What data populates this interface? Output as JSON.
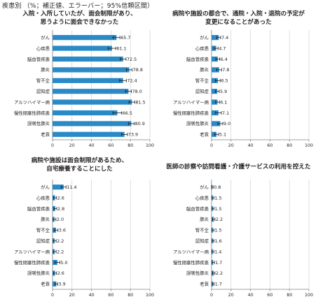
{
  "header": "疾患別 （%；補正値、エラーバー；95%信頼区間）",
  "colors": {
    "bar": "#2b8ac6",
    "axis": "#808080",
    "grid": "#c8c8c8",
    "error": "#1a1a1a"
  },
  "chart_data": [
    {
      "type": "bar",
      "orientation": "horizontal",
      "title_lines": [
        "入院・入所していたが、面会制限があり、",
        "思うように面会できなかった"
      ],
      "categories": [
        "がん",
        "心疾患",
        "脳血管疾患",
        "肺炎",
        "腎不全",
        "認知症",
        "アルツハイマー病",
        "慢性閉塞性肺疾患",
        "誤嚥性肺炎",
        "老衰"
      ],
      "values": [
        65.7,
        61.1,
        72.5,
        78.8,
        72.4,
        78.0,
        81.5,
        66.5,
        80.9,
        73.9
      ],
      "value_labels": [
        "65.7",
        "61.1",
        "72.5",
        "78.8",
        "72.4",
        "78.0",
        "81.5",
        "66.5",
        "80.9",
        "73.9"
      ],
      "ci_halfwidth": [
        3.5,
        4.0,
        3.0,
        3.0,
        3.5,
        3.0,
        3.0,
        4.5,
        3.0,
        3.0
      ],
      "xlim": [
        0,
        100
      ],
      "xticks": [
        "0",
        "20",
        "40",
        "60",
        "80",
        "100"
      ],
      "grid": true
    },
    {
      "type": "bar",
      "orientation": "horizontal",
      "title_lines": [
        "病院や施設の都合で、通院・入院・退院の予定が",
        "変更になることがあった"
      ],
      "categories": [
        "がん",
        "心疾患",
        "脳血管疾患",
        "肺炎",
        "腎不全",
        "認知症",
        "アルツハイマー病",
        "慢性閉塞性肺疾患",
        "誤嚥性肺炎",
        "老衰"
      ],
      "values": [
        7.4,
        4.7,
        6.4,
        7.8,
        6.5,
        5.9,
        6.1,
        7.1,
        9.0,
        5.1
      ],
      "value_labels": [
        "7.4",
        "4.7",
        "6.4",
        "7.8",
        "6.5",
        "5.9",
        "6.1",
        "7.1",
        "9.0",
        "5.1"
      ],
      "ci_halfwidth": [
        2.0,
        2.0,
        2.0,
        2.5,
        2.5,
        2.0,
        2.0,
        3.0,
        2.5,
        2.0
      ],
      "xlim": [
        0,
        100
      ],
      "xticks": [
        "0",
        "20",
        "40",
        "60",
        "80",
        "100"
      ],
      "grid": true
    },
    {
      "type": "bar",
      "orientation": "horizontal",
      "title_lines": [
        "病院や施設は面会制限があるため、",
        "自宅療養することにした"
      ],
      "categories": [
        "がん",
        "心疾患",
        "脳血管疾患",
        "肺炎",
        "腎不全",
        "認知症",
        "アルツハイマー病",
        "慢性閉塞性肺疾患",
        "誤嚥性肺炎",
        "老衰"
      ],
      "values": [
        11.4,
        2.6,
        2.8,
        2.0,
        3.6,
        2.2,
        2.2,
        5.0,
        2.6,
        3.9
      ],
      "value_labels": [
        "11.4",
        "2.6",
        "2.8",
        "2.0",
        "3.6",
        "2.2",
        "2.2",
        "5.0",
        "2.6",
        "3.9"
      ],
      "ci_halfwidth": [
        2.5,
        1.5,
        1.5,
        1.5,
        2.0,
        1.5,
        1.5,
        2.5,
        1.5,
        1.5
      ],
      "xlim": [
        0,
        100
      ],
      "xticks": [
        "0",
        "20",
        "40",
        "60",
        "80",
        "100"
      ],
      "grid": true
    },
    {
      "type": "bar",
      "orientation": "horizontal",
      "title_lines": [
        "医師の診察や訪問看護・介護サービスの利用を控えた"
      ],
      "categories": [
        "がん",
        "心疾患",
        "脳血管疾患",
        "肺炎",
        "腎不全",
        "認知症",
        "アルツハイマー病",
        "慢性閉塞性肺疾患",
        "誤嚥性肺炎",
        "老衰"
      ],
      "values": [
        0.8,
        1.5,
        1.5,
        2.2,
        1.5,
        1.6,
        1.4,
        1.7,
        2.2,
        1.7
      ],
      "value_labels": [
        "0.8",
        "1.5",
        "1.5",
        "2.2",
        "1.5",
        "1.6",
        "1.4",
        "1.7",
        "2.2",
        "1.7"
      ],
      "ci_halfwidth": [
        0.8,
        1.0,
        1.0,
        1.3,
        1.0,
        1.0,
        1.0,
        1.3,
        1.3,
        1.0
      ],
      "xlim": [
        0,
        100
      ],
      "xticks": [
        "0",
        "20",
        "40",
        "60",
        "80",
        "100"
      ],
      "grid": true
    }
  ]
}
